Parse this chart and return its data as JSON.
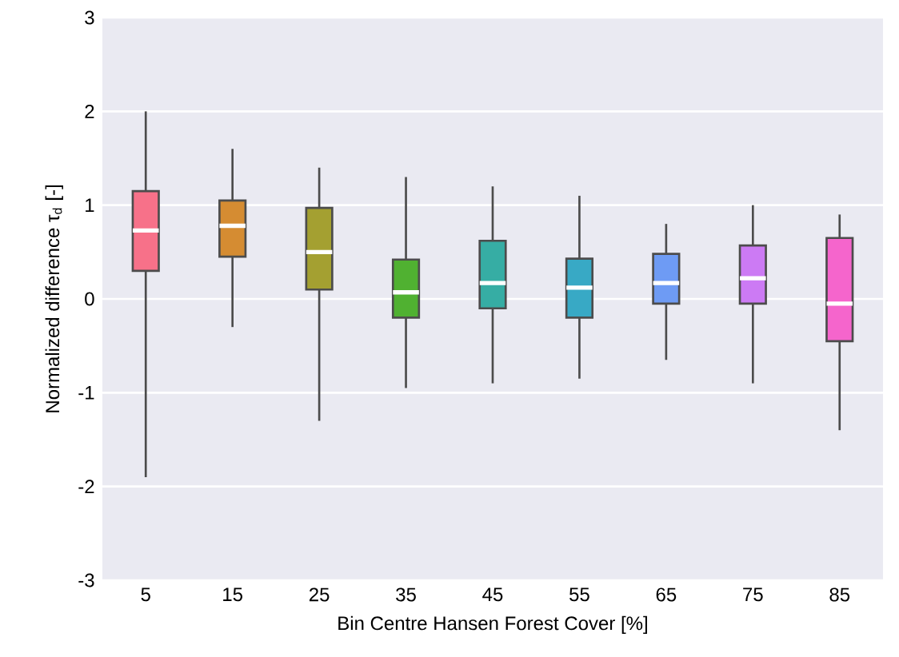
{
  "chart_data": {
    "type": "box",
    "xlabel": "Bin Centre Hansen Forest Cover [%]",
    "ylabel": "Normalized difference τ$_{d}$ [-]",
    "categories": [
      "5",
      "15",
      "25",
      "35",
      "45",
      "55",
      "65",
      "75",
      "85"
    ],
    "colors": [
      "#f77189",
      "#d58c32",
      "#a4a031",
      "#50b131",
      "#36ada4",
      "#38a9c5",
      "#6e9bf4",
      "#cc7af4",
      "#f565cc"
    ],
    "boxes": [
      {
        "low": -1.9,
        "q1": 0.3,
        "median": 0.73,
        "q3": 1.15,
        "high": 2.0
      },
      {
        "low": -0.3,
        "q1": 0.45,
        "median": 0.78,
        "q3": 1.05,
        "high": 1.6
      },
      {
        "low": -1.3,
        "q1": 0.1,
        "median": 0.5,
        "q3": 0.97,
        "high": 1.4
      },
      {
        "low": -0.95,
        "q1": -0.2,
        "median": 0.07,
        "q3": 0.42,
        "high": 1.3
      },
      {
        "low": -0.9,
        "q1": -0.1,
        "median": 0.17,
        "q3": 0.62,
        "high": 1.2
      },
      {
        "low": -0.85,
        "q1": -0.2,
        "median": 0.12,
        "q3": 0.43,
        "high": 1.1
      },
      {
        "low": -0.65,
        "q1": -0.05,
        "median": 0.17,
        "q3": 0.48,
        "high": 0.8
      },
      {
        "low": -0.9,
        "q1": -0.05,
        "median": 0.22,
        "q3": 0.57,
        "high": 1.0
      },
      {
        "low": -1.4,
        "q1": -0.45,
        "median": -0.05,
        "q3": 0.65,
        "high": 0.9
      }
    ],
    "ylim": [
      -3,
      3
    ],
    "yticks": [
      -3,
      -2,
      -1,
      0,
      1,
      2,
      3
    ],
    "grid": "y"
  }
}
